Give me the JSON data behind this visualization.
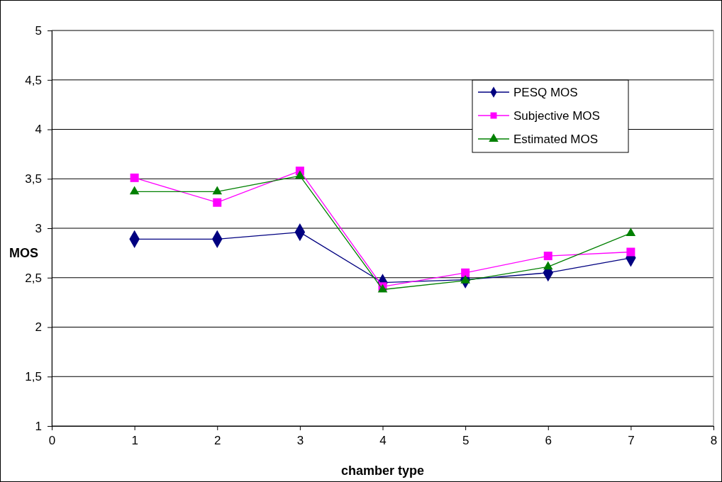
{
  "chart_data": {
    "type": "line",
    "xlabel": "chamber type",
    "ylabel": "MOS",
    "x": [
      1,
      2,
      3,
      4,
      5,
      6,
      7
    ],
    "series": [
      {
        "name": "PESQ MOS",
        "color": "#000080",
        "marker": "diamond",
        "values": [
          2.89,
          2.89,
          2.96,
          2.45,
          2.48,
          2.55,
          2.7
        ]
      },
      {
        "name": "Subjective MOS",
        "color": "#ff00ff",
        "marker": "square",
        "values": [
          3.51,
          3.26,
          3.58,
          2.41,
          2.55,
          2.72,
          2.76
        ]
      },
      {
        "name": "Estimated MOS",
        "color": "#008000",
        "marker": "triangle",
        "values": [
          3.37,
          3.37,
          3.53,
          2.38,
          2.47,
          2.61,
          2.95
        ]
      }
    ],
    "xlim": [
      0,
      8
    ],
    "xticks": [
      0,
      1,
      2,
      3,
      4,
      5,
      6,
      7,
      8
    ],
    "ylim": [
      1,
      5
    ],
    "yticks": [
      1,
      {
        "value": 1.5,
        "label": "1,5"
      },
      2,
      {
        "value": 2.5,
        "label": "2,5"
      },
      3,
      {
        "value": 3.5,
        "label": "3,5"
      },
      4,
      {
        "value": 4.5,
        "label": "4,5"
      },
      5
    ],
    "grid": "y",
    "legend": "top right",
    "line_style": "solid"
  }
}
